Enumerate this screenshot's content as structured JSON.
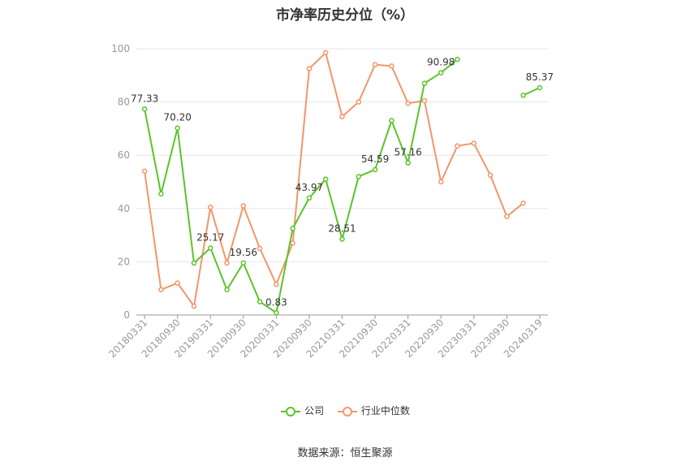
{
  "chart_data": {
    "type": "line",
    "title": "市净率历史分位（%）",
    "xlabel": "",
    "ylabel": "",
    "ylim": [
      0,
      100
    ],
    "yticks": [
      0,
      20,
      40,
      60,
      80,
      100
    ],
    "grid": true,
    "legend_position": "bottom",
    "x": [
      "20180331",
      "20180630",
      "20180930",
      "20181231",
      "20190331",
      "20190630",
      "20190930",
      "20191231",
      "20200331",
      "20200630",
      "20200930",
      "20201231",
      "20210331",
      "20210630",
      "20210930",
      "20211231",
      "20220331",
      "20220630",
      "20220930",
      "20221231",
      "20230331",
      "20230630",
      "20230930",
      "20231231",
      "20240319"
    ],
    "x_tick_labels": [
      "20180331",
      "20180930",
      "20190331",
      "20190930",
      "20200331",
      "20200930",
      "20210331",
      "20210930",
      "20220331",
      "20220930",
      "20230331",
      "20230930",
      "20240319"
    ],
    "series": [
      {
        "name": "公司",
        "color": "#5ac42a",
        "values": [
          77.33,
          45.5,
          70.2,
          19.5,
          25.17,
          9.5,
          19.56,
          5.0,
          0.83,
          32.5,
          43.97,
          51.0,
          28.51,
          52.0,
          54.59,
          73.0,
          57.16,
          87.0,
          90.98,
          96.0,
          null,
          null,
          null,
          82.5,
          85.37
        ],
        "data_labels": [
          {
            "index": 0,
            "text": "77.33"
          },
          {
            "index": 2,
            "text": "70.20"
          },
          {
            "index": 4,
            "text": "25.17"
          },
          {
            "index": 6,
            "text": "19.56"
          },
          {
            "index": 8,
            "text": "0.83"
          },
          {
            "index": 10,
            "text": "43.97"
          },
          {
            "index": 12,
            "text": "28.51"
          },
          {
            "index": 14,
            "text": "54.59"
          },
          {
            "index": 16,
            "text": "57.16"
          },
          {
            "index": 18,
            "text": "90.98"
          },
          {
            "index": 24,
            "text": "85.37"
          }
        ]
      },
      {
        "name": "行业中位数",
        "color": "#f4956a",
        "values": [
          54.0,
          9.5,
          12.0,
          3.3,
          40.5,
          19.5,
          41.0,
          25.0,
          11.5,
          27.0,
          92.5,
          98.5,
          74.5,
          80.0,
          94.0,
          93.5,
          79.5,
          80.5,
          50.0,
          63.5,
          64.5,
          52.5,
          37.0,
          42.0,
          null
        ]
      }
    ]
  },
  "legend": {
    "items": [
      {
        "label": "公司",
        "color": "#5ac42a"
      },
      {
        "label": "行业中位数",
        "color": "#f4956a"
      }
    ]
  },
  "source_text": "数据来源：恒生聚源"
}
